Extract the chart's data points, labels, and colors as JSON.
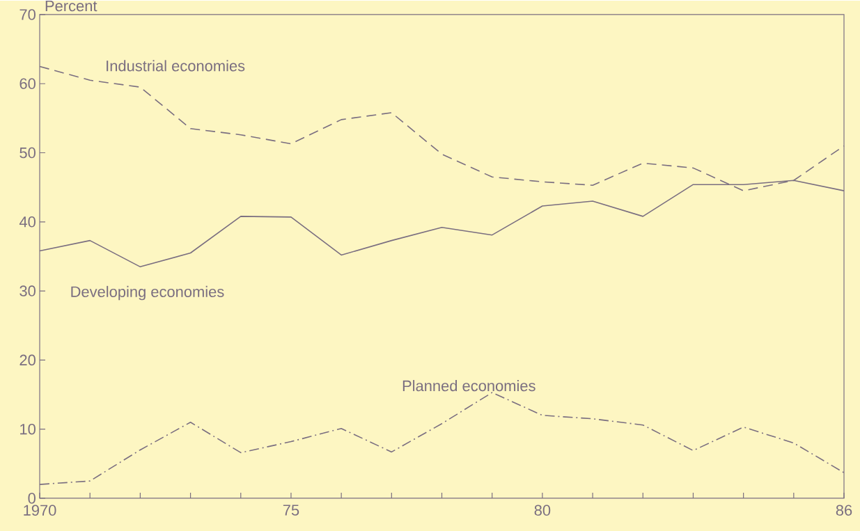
{
  "chart_data": {
    "type": "line",
    "ylabel": "Percent",
    "x": [
      1970,
      1971,
      1972,
      1973,
      1974,
      1975,
      1976,
      1977,
      1978,
      1979,
      1980,
      1981,
      1982,
      1983,
      1984,
      1985,
      1986
    ],
    "series": [
      {
        "name": "Industrial economies",
        "color": "#7a6e80",
        "line_style": "dashed",
        "values": [
          62.5,
          60.5,
          59.5,
          53.5,
          52.6,
          51.3,
          54.8,
          55.8,
          49.8,
          46.5,
          45.8,
          45.3,
          48.5,
          47.8,
          44.5,
          46,
          51
        ]
      },
      {
        "name": "Developing economies",
        "color": "#7a6e80",
        "line_style": "solid",
        "values": [
          35.8,
          37.3,
          33.5,
          35.5,
          40.8,
          40.7,
          35.2,
          37.3,
          39.2,
          38.1,
          42.3,
          43,
          40.8,
          45.4,
          45.4,
          46,
          44.5
        ]
      },
      {
        "name": "Planned economies",
        "color": "#7a6e80",
        "line_style": "dashdot",
        "values": [
          2,
          2.5,
          7,
          11,
          6.6,
          8.2,
          10.1,
          6.7,
          10.8,
          15.3,
          12,
          11.5,
          10.6,
          6.9,
          10.3,
          8,
          3.7
        ]
      }
    ],
    "xlim": [
      1970,
      1986
    ],
    "xticks": [
      {
        "value": 1970,
        "label": "1970"
      },
      {
        "value": 1971,
        "label": null
      },
      {
        "value": 1972,
        "label": null
      },
      {
        "value": 1973,
        "label": null
      },
      {
        "value": 1974,
        "label": null
      },
      {
        "value": 1975,
        "label": "75"
      },
      {
        "value": 1976,
        "label": null
      },
      {
        "value": 1977,
        "label": null
      },
      {
        "value": 1978,
        "label": null
      },
      {
        "value": 1979,
        "label": null
      },
      {
        "value": 1980,
        "label": "80"
      },
      {
        "value": 1981,
        "label": null
      },
      {
        "value": 1982,
        "label": null
      },
      {
        "value": 1983,
        "label": null
      },
      {
        "value": 1984,
        "label": null
      },
      {
        "value": 1985,
        "label": null
      },
      {
        "value": 1986,
        "label": "86"
      }
    ],
    "ylim": [
      0,
      70
    ],
    "yticks": [
      0,
      10,
      20,
      30,
      40,
      50,
      60,
      70
    ],
    "grid": false,
    "marker": "none"
  }
}
